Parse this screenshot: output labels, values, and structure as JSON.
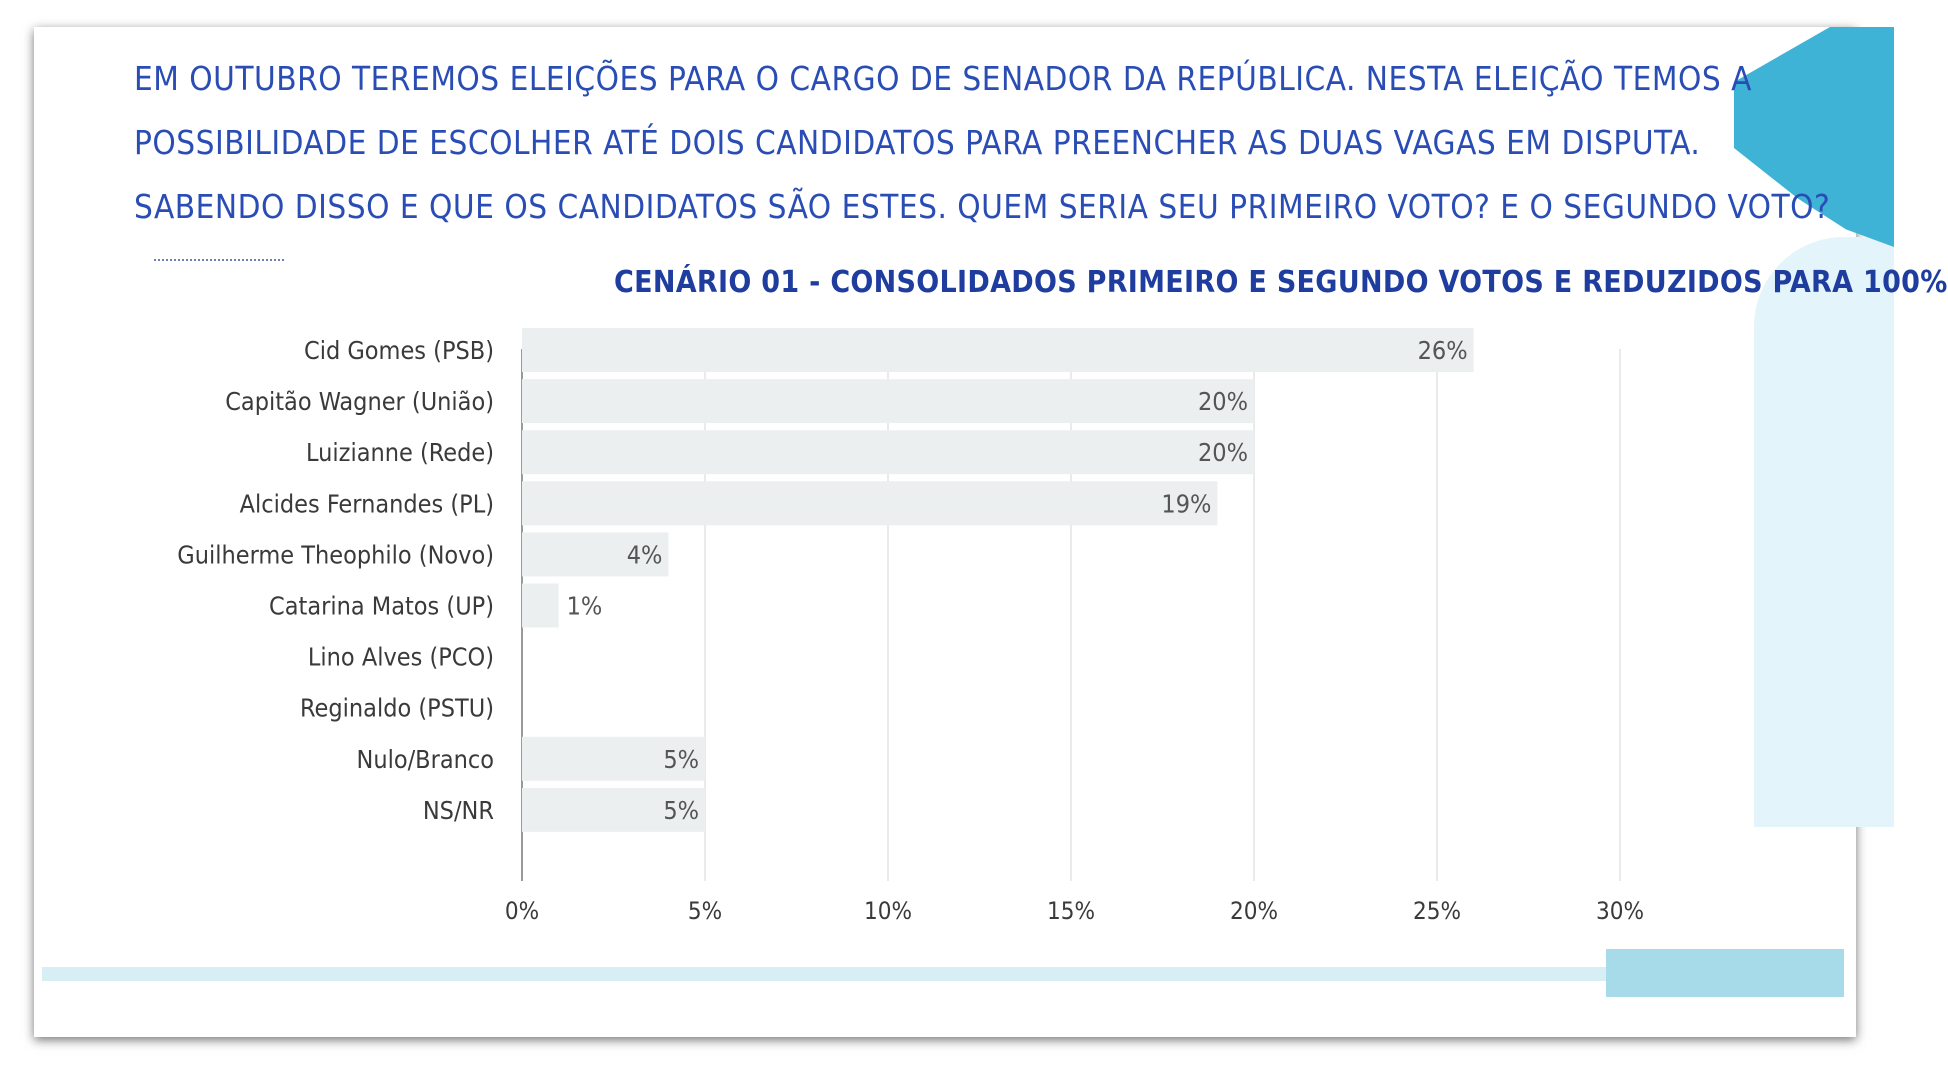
{
  "question": {
    "line1": "EM OUTUBRO TEREMOS ELEIÇÕES PARA O CARGO DE SENADOR DA REPÚBLICA. NESTA ELEIÇÃO TEMOS A",
    "line2": "POSSIBILIDADE DE ESCOLHER ATÉ DOIS CANDIDATOS PARA PREENCHER AS DUAS VAGAS EM DISPUTA.",
    "line3": "SABENDO DISSO E QUE OS CANDIDATOS SÃO ESTES. QUEM SERIA SEU PRIMEIRO VOTO? E O SEGUNDO VOTO?"
  },
  "colors": {
    "text": "#2a4db5",
    "title": "#1f3d9e",
    "bar": "#eef0f1",
    "grid": "#e3e3e3",
    "label": "#3a3a3a",
    "accent": "#3fb3d6",
    "accent_light": "#e3f4fa"
  },
  "chart_data": {
    "type": "bar",
    "orientation": "horizontal",
    "title": "CENÁRIO 01 - CONSOLIDADOS PRIMEIRO E SEGUNDO VOTOS E REDUZIDOS PARA 100%",
    "categories": [
      "Cid Gomes (PSB)",
      "Capitão Wagner (União)",
      "Luizianne (Rede)",
      "Alcides Fernandes (PL)",
      "Guilherme Theophilo (Novo)",
      "Catarina Matos (UP)",
      "Lino Alves (PCO)",
      "Reginaldo (PSTU)",
      "Nulo/Branco",
      "NS/NR"
    ],
    "values": [
      26,
      20,
      20,
      19,
      4,
      1,
      0,
      0,
      5,
      5
    ],
    "data_labels": [
      "26%",
      "20%",
      "20%",
      "19%",
      "4%",
      "1%",
      "",
      "",
      "5%",
      "5%"
    ],
    "xlim": [
      0,
      30
    ],
    "xticks": [
      0,
      5,
      10,
      15,
      20,
      25,
      30
    ],
    "xtick_labels": [
      "0%",
      "5%",
      "10%",
      "15%",
      "20%",
      "25%",
      "30%"
    ],
    "grid": true,
    "legend": "none"
  }
}
